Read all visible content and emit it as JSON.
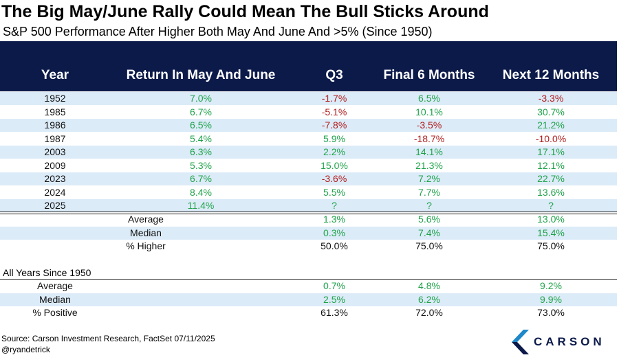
{
  "title": "The Big May/June Rally Could Mean The Bull Sticks Around",
  "subtitle": "S&P 500 Performance After Higher Both May And June And >5% (Since 1950)",
  "colors": {
    "header_bg": "#0c1a4a",
    "row_shade": "#dcebf8",
    "positive": "#1fa34a",
    "negative": "#b01c1c"
  },
  "chart_data": {
    "type": "table",
    "columns": [
      "Year",
      "Return In May And June",
      "Q3",
      "Final 6 Months",
      "Next 12 Months"
    ],
    "rows": [
      {
        "year": "1952",
        "values": [
          "7.0%",
          "-1.7%",
          "6.5%",
          "-3.3%"
        ]
      },
      {
        "year": "1985",
        "values": [
          "6.7%",
          "-5.1%",
          "10.1%",
          "30.7%"
        ]
      },
      {
        "year": "1986",
        "values": [
          "6.5%",
          "-7.8%",
          "-3.5%",
          "21.2%"
        ]
      },
      {
        "year": "1987",
        "values": [
          "5.4%",
          "5.9%",
          "-18.7%",
          "-10.0%"
        ]
      },
      {
        "year": "2003",
        "values": [
          "6.3%",
          "2.2%",
          "14.1%",
          "17.1%"
        ]
      },
      {
        "year": "2009",
        "values": [
          "5.3%",
          "15.0%",
          "21.3%",
          "12.1%"
        ]
      },
      {
        "year": "2023",
        "values": [
          "6.7%",
          "-3.6%",
          "7.2%",
          "22.7%"
        ]
      },
      {
        "year": "2024",
        "values": [
          "8.4%",
          "5.5%",
          "7.7%",
          "13.6%"
        ]
      },
      {
        "year": "2025",
        "values": [
          "11.4%",
          "?",
          "?",
          "?"
        ]
      }
    ],
    "summary": [
      {
        "label": "Average",
        "values": [
          "1.3%",
          "5.6%",
          "13.0%"
        ]
      },
      {
        "label": "Median",
        "values": [
          "0.3%",
          "7.4%",
          "15.4%"
        ]
      },
      {
        "label": "% Higher",
        "values": [
          "50.0%",
          "75.0%",
          "75.0%"
        ]
      }
    ],
    "all_years_title": "All Years Since 1950",
    "all_years": [
      {
        "label": "Average",
        "values": [
          "0.7%",
          "4.8%",
          "9.2%"
        ]
      },
      {
        "label": "Median",
        "values": [
          "2.5%",
          "6.2%",
          "9.9%"
        ]
      },
      {
        "label": "% Positive",
        "values": [
          "61.3%",
          "72.0%",
          "73.0%"
        ]
      }
    ]
  },
  "source": "Source: Carson Investment Research, FactSet 07/11/2025",
  "handle": "@ryandetrick",
  "logo": {
    "text": "CARSON",
    "icon": "carson-chevron-icon"
  }
}
